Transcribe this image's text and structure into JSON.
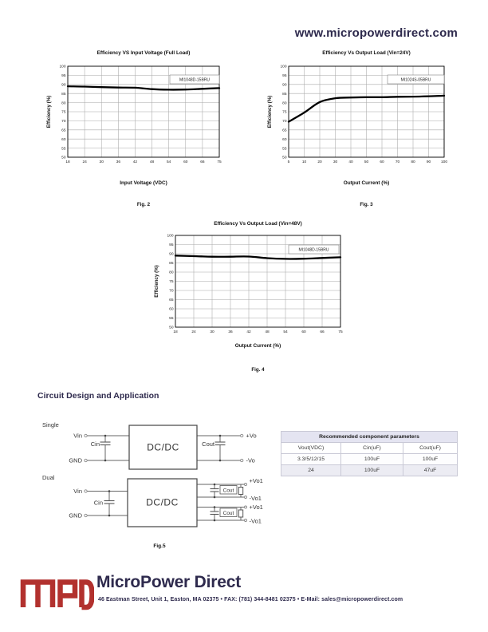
{
  "header": {
    "url": "www.micropowerdirect.com"
  },
  "chart_data": [
    {
      "type": "line",
      "title": "Efficiency VS Input Voltage (Full Load)",
      "xlabel": "Input Voltage (VDC)",
      "ylabel": "Efficiency (%)",
      "caption": "Fig. 2",
      "series_label": "MI1048D-15BRU",
      "categories": [
        18,
        24,
        30,
        36,
        42,
        48,
        54,
        60,
        66,
        75
      ],
      "values": [
        89.0,
        88.8,
        88.5,
        88.3,
        88.2,
        87.4,
        87.1,
        87.2,
        87.6,
        88.0
      ],
      "ylim": [
        50,
        100
      ],
      "ytick_step": 5,
      "grid": true
    },
    {
      "type": "line",
      "title": "Efficiency Vs Output Load (Vin=24V)",
      "xlabel": "Output Current (%)",
      "ylabel": "Efficiency (%)",
      "caption": "Fig. 3",
      "series_label": "MI1024S-05BRU",
      "categories": [
        5,
        10,
        20,
        30,
        40,
        50,
        60,
        70,
        80,
        90,
        100
      ],
      "values": [
        69.5,
        74.5,
        80.3,
        82.4,
        82.8,
        83.0,
        83.0,
        83.2,
        83.3,
        83.5,
        83.8
      ],
      "ylim": [
        50,
        100
      ],
      "ytick_step": 5,
      "grid": true
    },
    {
      "type": "line",
      "title": "Efficiency Vs Output Load  (Vin=48V)",
      "xlabel": "Output Current (%)",
      "ylabel": "Efficiency (%)",
      "caption": "Fig. 4",
      "series_label": "MI1048D-15BRU",
      "categories": [
        18,
        24,
        30,
        36,
        42,
        48,
        54,
        60,
        66,
        75
      ],
      "values": [
        89.0,
        88.7,
        88.4,
        88.4,
        88.5,
        87.6,
        87.2,
        87.3,
        87.7,
        88.1
      ],
      "ylim": [
        50,
        100
      ],
      "ytick_step": 5,
      "grid": true
    }
  ],
  "section": {
    "heading": "Circuit Design and Application",
    "fig_caption": "Fig.5"
  },
  "circuit": {
    "single": {
      "label": "Single",
      "vin": "Vin",
      "gnd": "GND",
      "cin": "Cin",
      "cout": "Cout",
      "box": "DC/DC",
      "pos": "+Vo",
      "neg": "-Vo"
    },
    "dual": {
      "label": "Dual",
      "vin": "Vin",
      "gnd": "GND",
      "cin": "Cin",
      "cout1": "Cout",
      "cout2": "Cout",
      "box": "DC/DC",
      "pos1": "+Vo1",
      "neg1": "-Vo1",
      "pos2": "+Vo1",
      "neg2": "-Vo1"
    }
  },
  "table": {
    "title": "Recommended component parameters",
    "headers": [
      "Vout(VDC)",
      "Cin(uF)",
      "Cout(uF)"
    ],
    "rows": [
      [
        "3.3/5/12/15",
        "100uF",
        "100uF"
      ],
      [
        "24",
        "100uF",
        "47uF"
      ]
    ]
  },
  "footer": {
    "logo_text": "MPD",
    "brand": "MicroPower Direct",
    "address": "46 Eastman Street, Unit 1, Easton, MA 02375 • FAX: (781) 344-8481 02375 • E-Mail: sales@micropowerdirect.com",
    "logo_color": "#b2312e",
    "brand_color": "#2e2a4d"
  }
}
